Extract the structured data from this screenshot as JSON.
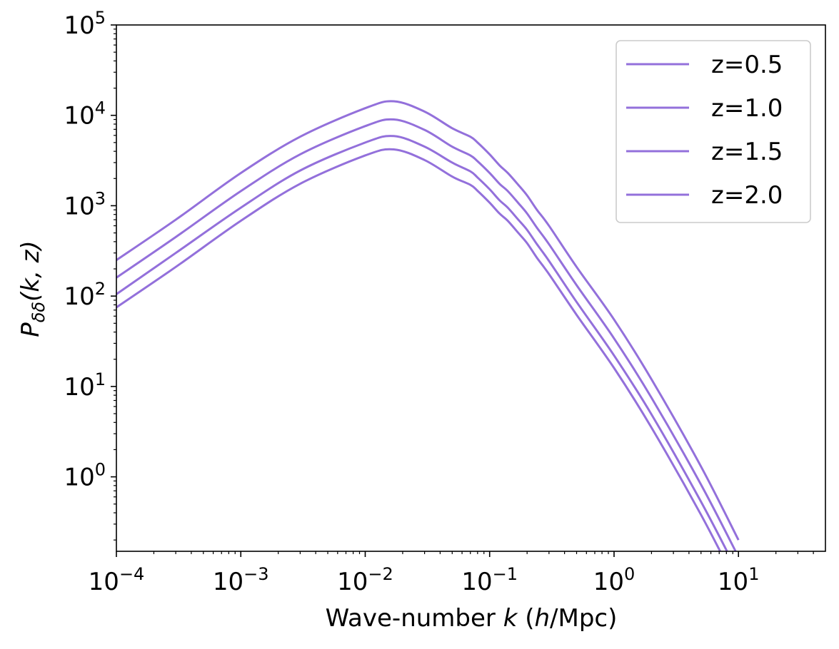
{
  "chart_data": {
    "type": "line",
    "title": "",
    "xlabel": "Wave-number k (h/Mpc)",
    "xlabel_parts": {
      "pre": "Wave-number ",
      "k": "k",
      "open": " (",
      "h": "h",
      "post": "/Mpc)"
    },
    "ylabel": "P_δδ(k, z)",
    "ylabel_parts": {
      "P": "P",
      "sub": "δδ",
      "args": "(k, z)"
    },
    "xscale": "log",
    "yscale": "log",
    "xlim": [
      0.0001,
      50
    ],
    "ylim": [
      0.15,
      100000
    ],
    "xticks": [
      {
        "base": "10",
        "exp": "−4",
        "value": 0.0001
      },
      {
        "base": "10",
        "exp": "−3",
        "value": 0.001
      },
      {
        "base": "10",
        "exp": "−2",
        "value": 0.01
      },
      {
        "base": "10",
        "exp": "−1",
        "value": 0.1
      },
      {
        "base": "10",
        "exp": "0",
        "value": 1
      },
      {
        "base": "10",
        "exp": "1",
        "value": 10
      }
    ],
    "yticks": [
      {
        "base": "10",
        "exp": "0",
        "value": 1
      },
      {
        "base": "10",
        "exp": "1",
        "value": 10
      },
      {
        "base": "10",
        "exp": "2",
        "value": 100
      },
      {
        "base": "10",
        "exp": "3",
        "value": 1000
      },
      {
        "base": "10",
        "exp": "4",
        "value": 10000
      },
      {
        "base": "10",
        "exp": "5",
        "value": 100000
      }
    ],
    "grid": false,
    "legend_position": "top-right",
    "line_color": "#9370DB",
    "x": [
      0.0001,
      0.0003,
      0.001,
      0.003,
      0.01,
      0.017,
      0.03,
      0.05,
      0.07,
      0.08,
      0.1,
      0.12,
      0.14,
      0.17,
      0.2,
      0.24,
      0.3,
      0.5,
      1.0,
      2.0,
      5.0,
      10.0
    ],
    "series": [
      {
        "name": "z=0.5",
        "values": [
          250,
          700,
          2300,
          5800,
          12000,
          14300,
          11000,
          7200,
          5800,
          5000,
          3700,
          2800,
          2300,
          1700,
          1300,
          900,
          600,
          210,
          55,
          12,
          1.3,
          0.2
        ]
      },
      {
        "name": "z=1.0",
        "values": [
          160,
          450,
          1450,
          3700,
          7600,
          9000,
          6900,
          4500,
          3600,
          3100,
          2300,
          1750,
          1450,
          1070,
          820,
          570,
          375,
          132,
          34,
          7.5,
          0.82,
          0.13
        ]
      },
      {
        "name": "z=1.5",
        "values": [
          105,
          300,
          950,
          2450,
          5000,
          5900,
          4500,
          3000,
          2400,
          2050,
          1520,
          1150,
          950,
          700,
          540,
          375,
          245,
          86,
          22,
          4.9,
          0.53,
          0.085
        ]
      },
      {
        "name": "z=2.0",
        "values": [
          75,
          210,
          680,
          1750,
          3600,
          4200,
          3200,
          2100,
          1700,
          1460,
          1080,
          820,
          680,
          500,
          385,
          265,
          175,
          62,
          16,
          3.5,
          0.38,
          0.06
        ]
      }
    ]
  }
}
